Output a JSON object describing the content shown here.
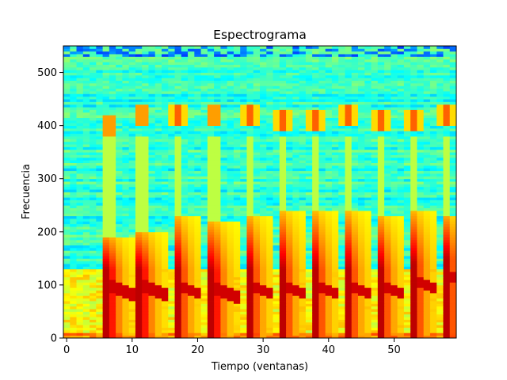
{
  "chart_data": {
    "type": "heatmap",
    "title": "Espectrograma",
    "xlabel": "Tiempo (ventanas)",
    "ylabel": "Frecuencia",
    "xlim": [
      -0.5,
      59.5
    ],
    "ylim": [
      0,
      550
    ],
    "x_ticks": [
      0,
      10,
      20,
      30,
      40,
      50
    ],
    "y_ticks": [
      0,
      100,
      200,
      300,
      400,
      500
    ],
    "colormap": "jet",
    "grid": false,
    "legend": "none",
    "background_level": 0.42,
    "low_band": {
      "freq_range": [
        0,
        130
      ],
      "level": 0.62
    },
    "events": [
      {
        "t": 6.5,
        "peak_freq": 100,
        "top_freq": 190,
        "harmonics": [
          400
        ]
      },
      {
        "t": 11.5,
        "peak_freq": 100,
        "top_freq": 200,
        "harmonics": [
          420
        ]
      },
      {
        "t": 17,
        "peak_freq": 100,
        "top_freq": 230,
        "harmonics": [
          420
        ]
      },
      {
        "t": 22.5,
        "peak_freq": 95,
        "top_freq": 220,
        "harmonics": [
          420
        ]
      },
      {
        "t": 28,
        "peak_freq": 100,
        "top_freq": 230,
        "harmonics": [
          420
        ]
      },
      {
        "t": 33,
        "peak_freq": 100,
        "top_freq": 240,
        "harmonics": [
          410
        ]
      },
      {
        "t": 38,
        "peak_freq": 100,
        "top_freq": 240,
        "harmonics": [
          410
        ]
      },
      {
        "t": 43,
        "peak_freq": 100,
        "top_freq": 240,
        "harmonics": [
          420
        ]
      },
      {
        "t": 48,
        "peak_freq": 100,
        "top_freq": 230,
        "harmonics": [
          410
        ]
      },
      {
        "t": 53,
        "peak_freq": 110,
        "top_freq": 240,
        "harmonics": [
          410
        ]
      },
      {
        "t": 58,
        "peak_freq": 120,
        "top_freq": 230,
        "harmonics": [
          420
        ]
      }
    ]
  }
}
